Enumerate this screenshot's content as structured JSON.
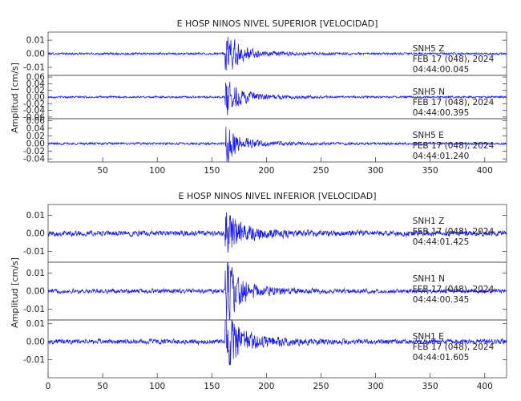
{
  "chart_data": [
    {
      "type": "line",
      "title": "E HOSP NINOS NIVEL SUPERIOR [VELOCIDAD]",
      "ylabel": "Amplitud [cm/s]",
      "xlabel": "",
      "xlim": [
        0,
        420
      ],
      "xticks": [
        50,
        100,
        150,
        200,
        250,
        300,
        350,
        400
      ],
      "event_onset_x": 162,
      "series": [
        {
          "name": "SNH5 Z",
          "station": "SNH5",
          "component": "Z",
          "date": "FEB 17 (048), 2024",
          "time": "04:44:00.045",
          "ylim": [
            -0.016,
            0.016
          ],
          "yticks": [
            -0.01,
            0.0,
            0.01
          ],
          "noise_amp": 0.0008,
          "peak_amp": 0.014
        },
        {
          "name": "SNH5 N",
          "station": "SNH5",
          "component": "N",
          "date": "FEB 17 (048), 2024",
          "time": "04:44:00.395",
          "ylim": [
            -0.065,
            0.065
          ],
          "yticks": [
            -0.06,
            -0.04,
            -0.02,
            0.0,
            0.02,
            0.04,
            0.06
          ],
          "noise_amp": 0.003,
          "peak_amp": 0.05
        },
        {
          "name": "SNH5 E",
          "station": "SNH5",
          "component": "E",
          "date": "FEB 17 (048), 2024",
          "time": "04:44:01.240",
          "ylim": [
            -0.048,
            0.065
          ],
          "yticks": [
            -0.04,
            -0.02,
            0.0,
            0.02,
            0.04,
            0.06
          ],
          "noise_amp": 0.003,
          "peak_amp": 0.045
        }
      ]
    },
    {
      "type": "line",
      "title": "E HOSP NINOS NIVEL INFERIOR [VELOCIDAD]",
      "ylabel": "Amplitud [cm/s]",
      "xlabel": "",
      "xlim": [
        0,
        420
      ],
      "xticks": [
        0,
        50,
        100,
        150,
        200,
        250,
        300,
        350,
        400
      ],
      "event_onset_x": 162,
      "series": [
        {
          "name": "SNH1 Z",
          "station": "SNH1",
          "component": "Z",
          "date": "FEB 17 (048), 2024",
          "time": "04:44:01.425",
          "ylim": [
            -0.016,
            0.016
          ],
          "yticks": [
            -0.01,
            0.0,
            0.01
          ],
          "noise_amp": 0.0015,
          "peak_amp": 0.013
        },
        {
          "name": "SNH1 N",
          "station": "SNH1",
          "component": "N",
          "date": "FEB 17 (048), 2024",
          "time": "04:44:00.345",
          "ylim": [
            -0.016,
            0.016
          ],
          "yticks": [
            -0.01,
            0.0,
            0.01
          ],
          "noise_amp": 0.0012,
          "peak_amp": 0.015
        },
        {
          "name": "SNH1 E",
          "station": "SNH1",
          "component": "E",
          "date": "FEB 17 (048), 2024",
          "time": "04:44:01.605",
          "ylim": [
            -0.02,
            0.012
          ],
          "yticks": [
            -0.01,
            0.0,
            0.01
          ],
          "noise_amp": 0.0014,
          "peak_amp": 0.017
        }
      ]
    }
  ],
  "colors": {
    "trace": "#1a1aff",
    "axis": "#444444"
  }
}
